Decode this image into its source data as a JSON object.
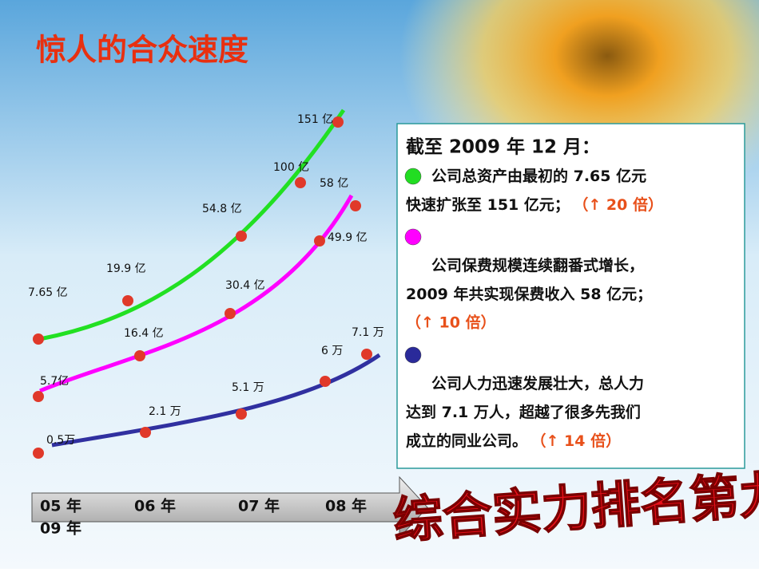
{
  "header": {
    "title": "惊人的合众速度"
  },
  "curves": [
    {
      "color": "#22e022",
      "labels": [
        "7.65 亿",
        "19.9 亿",
        "54.8 亿",
        "100 亿",
        "151 亿"
      ]
    },
    {
      "color": "#ff00ff",
      "labels": [
        "5.7亿",
        "16.4 亿",
        "30.4 亿",
        "49.9 亿",
        "58 亿"
      ]
    },
    {
      "color": "#3030a0",
      "labels": [
        "0.5万",
        "2.1 万",
        "5.1 万",
        "6 万",
        "7.1 万"
      ]
    }
  ],
  "timeline": [
    "05 年",
    "06 年",
    "07 年",
    "08 年",
    "09 年"
  ],
  "panel": {
    "heading": "截至 2009 年 12 月：",
    "items": [
      {
        "color": "#22dd22",
        "lines": [
          "公司总资产由最初的 7.65 亿元",
          "快速扩张至 151 亿元；"
        ],
        "highlight": "（↑ 20 倍）",
        "inline": true
      },
      {
        "color": "#ff00ff",
        "lines": [
          "公司保费规模连续翻番式增长，",
          "2009 年共实现保费收入 58 亿元；"
        ],
        "highlight": "（↑ 10 倍）",
        "inline": false
      },
      {
        "color": "#2a2a9a",
        "lines": [
          "公司人力迅速发展壮大，总人力",
          "达到 7.1 万人，超越了很多先我们",
          "成立的同业公司。"
        ],
        "highlight": "（↑ 14 倍）",
        "inline": true
      }
    ]
  },
  "stamp": "综合实力排名第九"
}
